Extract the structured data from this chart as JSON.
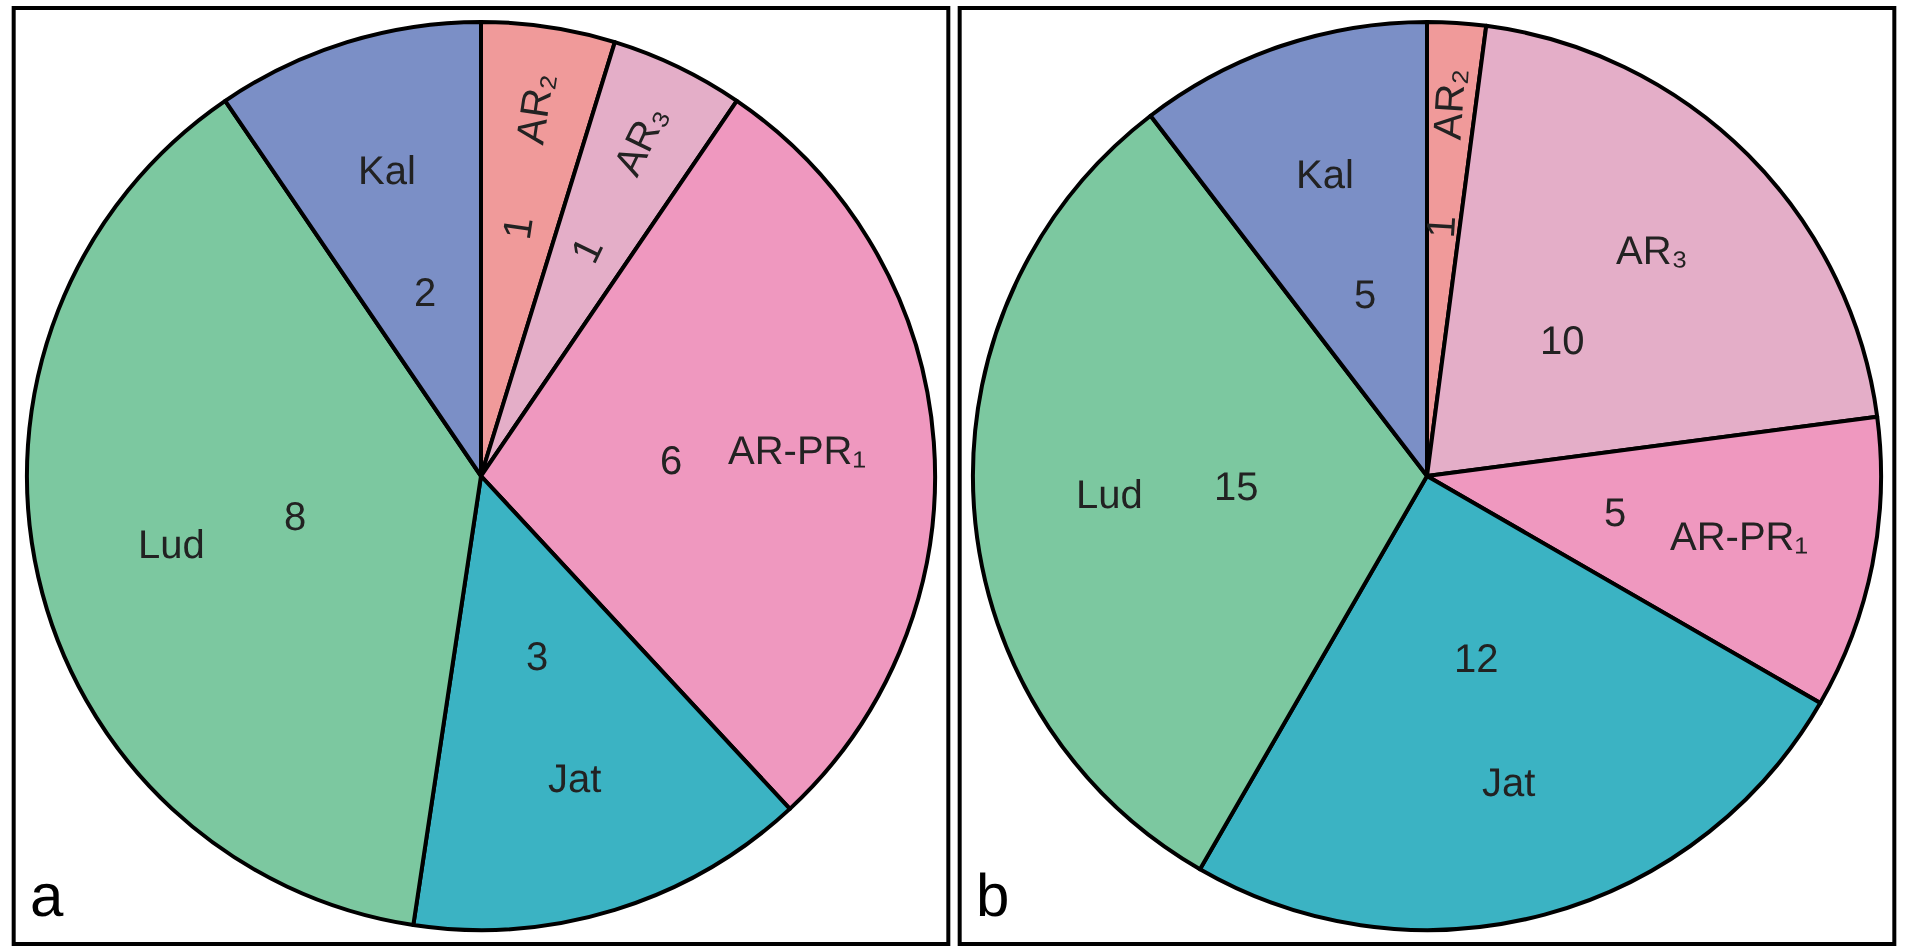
{
  "chart_data": [
    {
      "type": "pie",
      "categories": [
        "AR₂",
        "AR₃",
        "AR-PR₁",
        "Jat",
        "Lud",
        "Kal"
      ],
      "values": [
        1,
        1,
        6,
        3,
        8,
        2
      ],
      "colors": [
        "#f09a9a",
        "#e4aec8",
        "#ef98bf",
        "#3bb3c3",
        "#7cc8a0",
        "#7b8fc6"
      ],
      "data_labels": true,
      "legend": false,
      "annotations": [
        "a"
      ]
    },
    {
      "type": "pie",
      "categories": [
        "AR₂",
        "AR₃",
        "AR-PR₁",
        "Jat",
        "Lud",
        "Kal"
      ],
      "values": [
        1,
        10,
        5,
        12,
        15,
        5
      ],
      "colors": [
        "#f09a9a",
        "#e4aec8",
        "#ef98bf",
        "#3bb3c3",
        "#7cc8a0",
        "#7b8fc6"
      ],
      "data_labels": true,
      "legend": false,
      "annotations": [
        "b"
      ]
    }
  ]
}
